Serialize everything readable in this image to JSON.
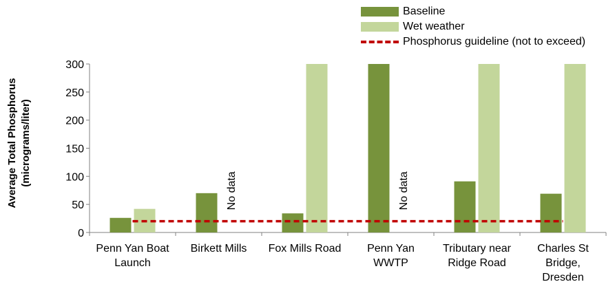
{
  "chart_data": {
    "type": "bar",
    "categories": [
      [
        "Penn Yan Boat",
        "Launch"
      ],
      [
        "Birkett Mills"
      ],
      [
        "Fox Mills Road"
      ],
      [
        "Penn Yan",
        "WWTP"
      ],
      [
        "Tributary near",
        "Ridge Road"
      ],
      [
        "Charles St",
        "Bridge,",
        "Dresden"
      ]
    ],
    "series": [
      {
        "name": "Baseline",
        "color": "#77933c",
        "values": [
          26,
          70,
          34,
          300,
          91,
          69
        ]
      },
      {
        "name": "Wet weather",
        "color": "#c3d69b",
        "values": [
          42,
          null,
          300,
          null,
          300,
          300
        ]
      }
    ],
    "guideline": {
      "name": "Phosphorus guideline (not to exceed)",
      "value": 20,
      "color": "#c00000"
    },
    "no_data_label": "No data",
    "ylabel": [
      "Average Total Phosphorus",
      "(micrograms/liter)"
    ],
    "ylim": [
      0,
      300
    ],
    "yticks": [
      0,
      50,
      100,
      150,
      200,
      250,
      300
    ],
    "grid": false,
    "legend": "top-right"
  }
}
